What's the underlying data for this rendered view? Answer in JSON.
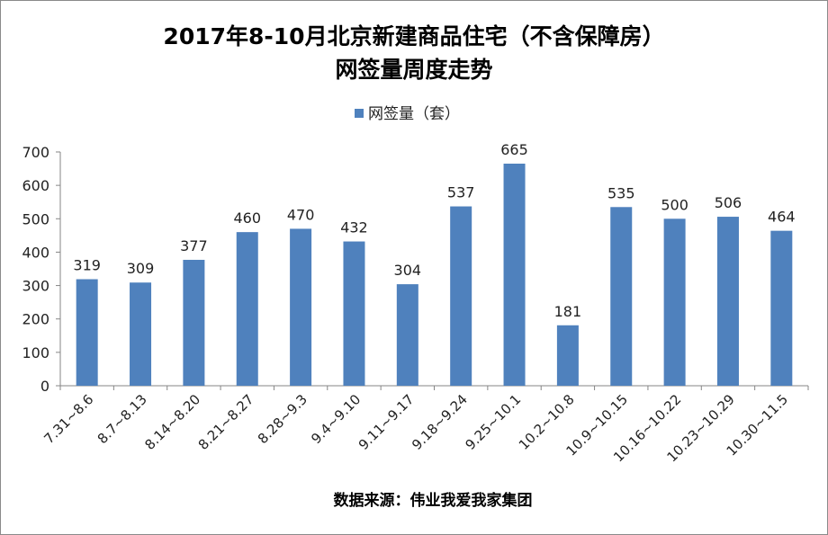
{
  "chart_data": {
    "type": "bar",
    "title_line1": "2017年8-10月北京新建商品住宅（不含保障房）",
    "title_line2": "网签量周度走势",
    "series_name": "网签量（套）",
    "categories": [
      "7.31~8.6",
      "8.7~8.13",
      "8.14~8.20",
      "8.21~8.27",
      "8.28~9.3",
      "9.4~9.10",
      "9.11~9.17",
      "9.18~9.24",
      "9.25~10.1",
      "10.2~10.8",
      "10.9~10.15",
      "10.16~10.22",
      "10.23~10.29",
      "10.30~11.5"
    ],
    "values": [
      319,
      309,
      377,
      460,
      470,
      432,
      304,
      537,
      665,
      181,
      535,
      500,
      506,
      464
    ],
    "ylim": [
      0,
      700
    ],
    "yticks": [
      0,
      100,
      200,
      300,
      400,
      500,
      600,
      700
    ],
    "grid": false,
    "legend_position": "top-center",
    "bar_color": "#4F81BD",
    "source": "数据来源：伟业我爱我家集团"
  }
}
